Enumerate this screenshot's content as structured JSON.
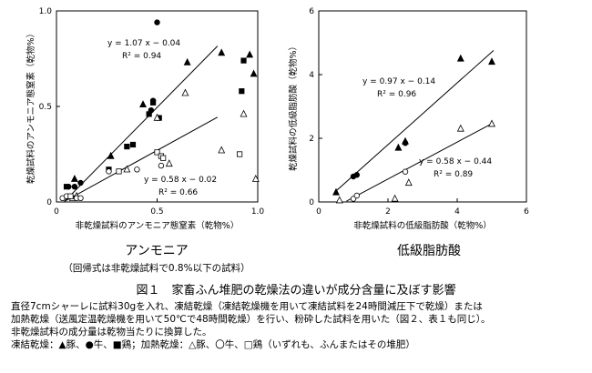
{
  "chart_data": [
    {
      "type": "scatter",
      "ylabel": "乾燥試料のアンモニア態窒素（乾物%）",
      "xlabel": "非乾燥試料のアンモニア態窒素（乾物%）",
      "xlim": [
        0,
        1.0
      ],
      "ylim": [
        0,
        1.0
      ],
      "x_ticks": [
        "0",
        "0.5",
        "1.0"
      ],
      "y_ticks": [
        "0",
        "0.5",
        "1.0"
      ],
      "caption": "アンモニア",
      "subcaption": "（回帰式は非乾燥試料で0.8%以下の試料）",
      "regressions": [
        {
          "equation": "y = 1.07 x − 0.04",
          "r2": "R² = 0.94",
          "slope": 1.07,
          "intercept": -0.04,
          "x_range": [
            0.04,
            0.8
          ]
        },
        {
          "equation": "y = 0.58 x − 0.02",
          "r2": "R² = 0.66",
          "slope": 0.58,
          "intercept": -0.02,
          "x_range": [
            0.04,
            0.8
          ]
        }
      ],
      "series": [
        {
          "marker": "filled-triangle",
          "points": [
            [
              0.09,
              0.12
            ],
            [
              0.27,
              0.24
            ],
            [
              0.43,
              0.51
            ],
            [
              0.65,
              0.73
            ],
            [
              0.82,
              0.78
            ],
            [
              0.96,
              0.77
            ],
            [
              0.98,
              0.67
            ]
          ]
        },
        {
          "marker": "filled-circle",
          "points": [
            [
              0.06,
              0.08
            ],
            [
              0.09,
              0.08
            ],
            [
              0.12,
              0.1
            ],
            [
              0.47,
              0.48
            ],
            [
              0.48,
              0.53
            ],
            [
              0.5,
              0.94
            ]
          ]
        },
        {
          "marker": "filled-square",
          "points": [
            [
              0.05,
              0.08
            ],
            [
              0.26,
              0.17
            ],
            [
              0.35,
              0.29
            ],
            [
              0.38,
              0.3
            ],
            [
              0.46,
              0.46
            ],
            [
              0.48,
              0.52
            ],
            [
              0.51,
              0.44
            ],
            [
              0.92,
              0.58
            ],
            [
              0.93,
              0.74
            ]
          ]
        },
        {
          "marker": "open-triangle",
          "points": [
            [
              0.08,
              0.02
            ],
            [
              0.1,
              0.03
            ],
            [
              0.35,
              0.17
            ],
            [
              0.5,
              0.44
            ],
            [
              0.56,
              0.2
            ],
            [
              0.64,
              0.57
            ],
            [
              0.82,
              0.27
            ],
            [
              0.93,
              0.46
            ],
            [
              0.99,
              0.12
            ]
          ]
        },
        {
          "marker": "open-circle",
          "points": [
            [
              0.03,
              0.02
            ],
            [
              0.05,
              0.03
            ],
            [
              0.1,
              0.02
            ],
            [
              0.12,
              0.02
            ],
            [
              0.26,
              0.16
            ],
            [
              0.4,
              0.17
            ],
            [
              0.52,
              0.19
            ]
          ]
        },
        {
          "marker": "open-square",
          "points": [
            [
              0.07,
              0.03
            ],
            [
              0.31,
              0.16
            ],
            [
              0.5,
              0.26
            ],
            [
              0.52,
              0.24
            ],
            [
              0.53,
              0.23
            ],
            [
              0.91,
              0.25
            ]
          ]
        }
      ]
    },
    {
      "type": "scatter",
      "ylabel": "乾燥試料の低級脂肪酸（乾物%）",
      "xlabel": "非乾燥試料の低級脂肪酸（乾物%）",
      "xlim": [
        0,
        6
      ],
      "ylim": [
        0,
        6
      ],
      "x_ticks": [
        "0",
        "2",
        "4",
        "6"
      ],
      "y_ticks": [
        "0",
        "2",
        "4",
        "6"
      ],
      "caption": "低級脂肪酸",
      "regressions": [
        {
          "equation": "y = 0.97 x − 0.14",
          "r2": "R² = 0.96",
          "slope": 0.97,
          "intercept": -0.14,
          "x_range": [
            0.5,
            5.05
          ]
        },
        {
          "equation": "y = 0.58 x − 0.44",
          "r2": "R² = 0.89",
          "slope": 0.58,
          "intercept": -0.44,
          "x_range": [
            0.8,
            5.05
          ]
        }
      ],
      "series": [
        {
          "marker": "filled-triangle",
          "points": [
            [
              0.5,
              0.3
            ],
            [
              2.3,
              1.7
            ],
            [
              2.5,
              1.9
            ],
            [
              4.1,
              4.5
            ],
            [
              5.0,
              4.4
            ]
          ]
        },
        {
          "marker": "filled-circle",
          "points": [
            [
              1.0,
              0.8
            ],
            [
              1.1,
              0.85
            ],
            [
              2.5,
              1.85
            ]
          ]
        },
        {
          "marker": "open-triangle",
          "points": [
            [
              0.6,
              0.05
            ],
            [
              2.2,
              0.1
            ],
            [
              2.6,
              0.6
            ],
            [
              4.1,
              2.3
            ],
            [
              5.0,
              2.45
            ]
          ]
        },
        {
          "marker": "open-circle",
          "points": [
            [
              1.0,
              0.1
            ],
            [
              1.1,
              0.2
            ],
            [
              2.5,
              0.95
            ]
          ]
        }
      ]
    }
  ],
  "figure": {
    "title": "図１　家畜ふん堆肥の乾燥法の違いが成分含量に及ぼす影響"
  },
  "notes": [
    "直径7cmシャーレに試料30gを入れ、凍結乾燥（凍結乾燥機を用いて凍結試料を24時間減圧下で乾燥）または",
    "加熱乾燥（送風定温乾燥機を用いて50℃で48時間乾燥）を行い、粉砕した試料を用いた（図２、表１も同じ）。",
    "非乾燥試料の成分量は乾物当たりに換算した。",
    "凍結乾燥：▲豚、●牛、■鶏；加熱乾燥：△豚、〇牛、□鶏（いずれも、ふんまたはその堆肥）"
  ]
}
